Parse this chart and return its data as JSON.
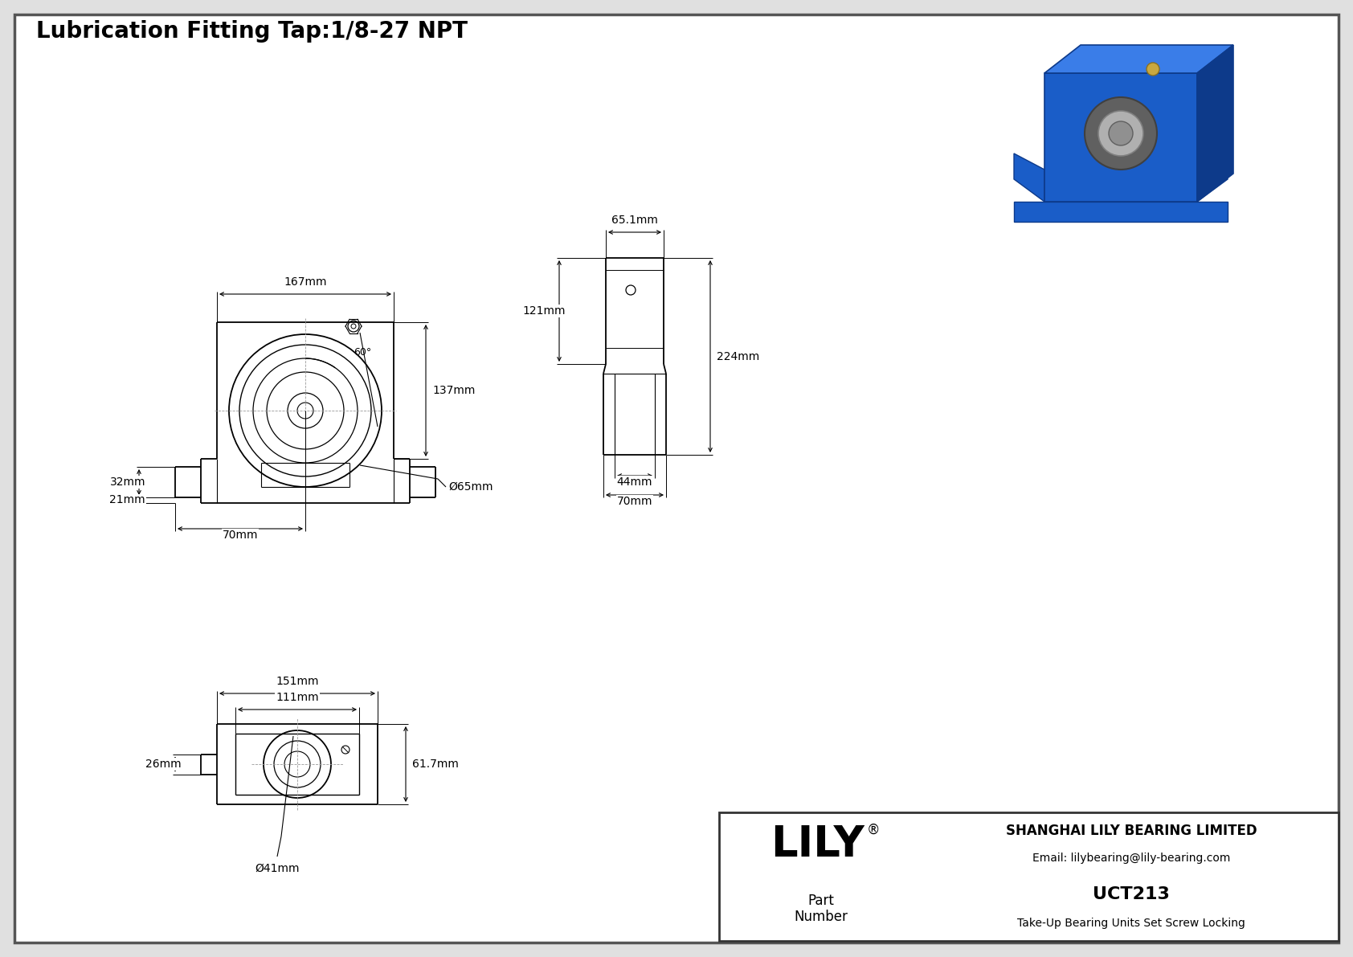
{
  "title": "Lubrication Fitting Tap:1/8-27 NPT",
  "bg_color": "#e0e0e0",
  "drawing_bg": "#ffffff",
  "line_color": "#000000",
  "company": "SHANGHAI LILY BEARING LIMITED",
  "email": "Email: lilybearing@lily-bearing.com",
  "part_number": "UCT213",
  "part_desc": "Take-Up Bearing Units Set Screw Locking",
  "logo_text": "LILY",
  "d167": "167mm",
  "d32": "32mm",
  "d21": "21mm",
  "d137": "137mm",
  "d70f": "70mm",
  "d65dia": "Ø65mm",
  "d60deg": "60°",
  "d65_1": "65.1mm",
  "d121": "121mm",
  "d224": "224mm",
  "d44": "44mm",
  "d70s": "70mm",
  "d151": "151mm",
  "d111": "111mm",
  "d61_7": "61.7mm",
  "d26": "26mm",
  "d41dia": "Ø41mm",
  "part_label": "Part\nNumber"
}
